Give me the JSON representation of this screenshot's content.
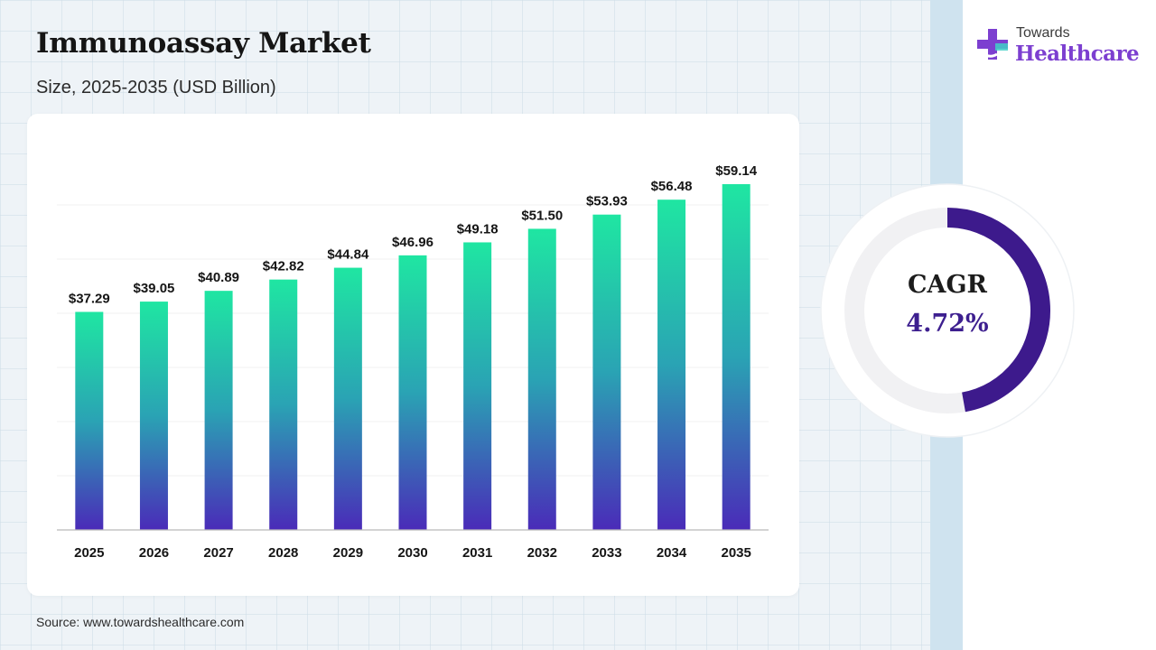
{
  "header": {
    "title": "Immunoassay Market",
    "subtitle": "Size, 2025-2035 (USD Billion)"
  },
  "brand": {
    "line1": "Towards",
    "line2": "Healthcare",
    "icon": "medical-cross-icon",
    "colors": {
      "primary": "#7c3fd0",
      "secondary": "#3fd0c6"
    }
  },
  "chart_data": {
    "type": "bar",
    "categories": [
      "2025",
      "2026",
      "2027",
      "2028",
      "2029",
      "2030",
      "2031",
      "2032",
      "2033",
      "2034",
      "2035"
    ],
    "values": [
      37.29,
      39.05,
      40.89,
      42.82,
      44.84,
      46.96,
      49.18,
      51.5,
      53.93,
      56.48,
      59.14
    ],
    "value_labels": [
      "$37.29",
      "$39.05",
      "$40.89",
      "$42.82",
      "$44.84",
      "$46.96",
      "$49.18",
      "$51.50",
      "$53.93",
      "$56.48",
      "$59.14"
    ],
    "ylim": [
      0,
      65
    ],
    "grid": true,
    "bar_gradient": {
      "top": "#1fe6a2",
      "bottom": "#4a2bb8"
    }
  },
  "cagr": {
    "label": "CAGR",
    "value": "4.72%",
    "fraction": 0.472,
    "ring_color": "#3d1a8c",
    "track_color": "#f1f1f3"
  },
  "footer": {
    "source": "Source: www.towardshealthcare.com"
  }
}
